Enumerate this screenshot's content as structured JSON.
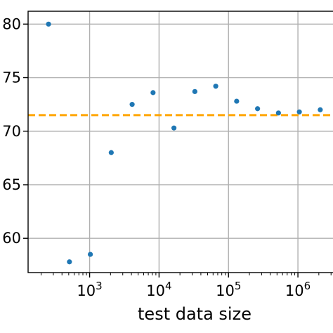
{
  "chart_data": {
    "type": "scatter",
    "title": "",
    "xlabel": "test data size",
    "ylabel": "",
    "xscale": "log",
    "xlim": [
      130,
      3200000
    ],
    "ylim": [
      56.8,
      81.2
    ],
    "grid": true,
    "x_ticks": [
      {
        "value": 1000,
        "base": "10",
        "exp": "3"
      },
      {
        "value": 10000,
        "base": "10",
        "exp": "4"
      },
      {
        "value": 100000,
        "base": "10",
        "exp": "5"
      },
      {
        "value": 1000000,
        "base": "10",
        "exp": "6"
      }
    ],
    "y_ticks": [
      {
        "value": 60,
        "label": "60"
      },
      {
        "value": 65,
        "label": "65"
      },
      {
        "value": 70,
        "label": "70"
      },
      {
        "value": 75,
        "label": "75"
      },
      {
        "value": 80,
        "label": "80"
      }
    ],
    "series": [
      {
        "color": "#1f77b4",
        "x": [
          256,
          512,
          1024,
          2048,
          4096,
          8192,
          16384,
          32768,
          65536,
          131072,
          262144,
          524288,
          1048576,
          2097152
        ],
        "y": [
          80.0,
          57.8,
          58.5,
          68.0,
          72.5,
          73.6,
          70.3,
          73.7,
          74.2,
          72.8,
          72.1,
          71.7,
          71.8,
          72.0
        ]
      }
    ],
    "reference_line": {
      "y": 71.5,
      "color": "#ffa500",
      "style": "dashed"
    }
  }
}
